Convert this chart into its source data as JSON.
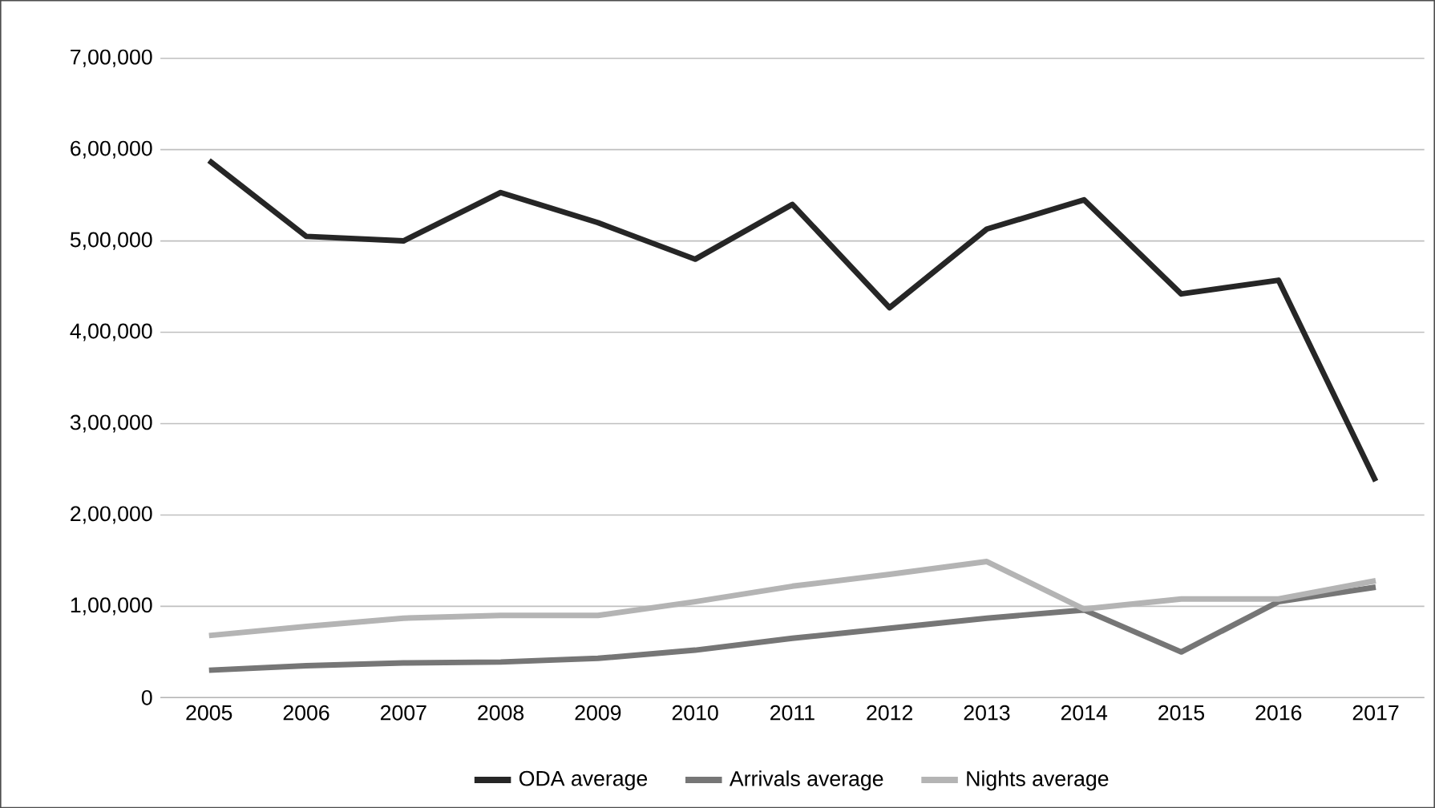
{
  "chart_data": {
    "type": "line",
    "categories": [
      "2005",
      "2006",
      "2007",
      "2008",
      "2009",
      "2010",
      "2011",
      "2012",
      "2013",
      "2014",
      "2015",
      "2016",
      "2017"
    ],
    "series": [
      {
        "name": "ODA average",
        "color": "#262626",
        "values": [
          588000,
          505000,
          500000,
          553000,
          520000,
          480000,
          540000,
          427000,
          513000,
          545000,
          442000,
          457000,
          237000
        ]
      },
      {
        "name": "Arrivals average",
        "color": "#767676",
        "values": [
          30000,
          35000,
          38000,
          39000,
          43000,
          52000,
          65000,
          76000,
          87000,
          96000,
          50000,
          105000,
          121000
        ]
      },
      {
        "name": "Nights average",
        "color": "#b4b4b4",
        "values": [
          68000,
          78000,
          87000,
          90000,
          90000,
          105000,
          122000,
          135000,
          149000,
          97000,
          108000,
          108000,
          128000
        ]
      }
    ],
    "ylim": [
      0,
      700000
    ],
    "yticks": [
      0,
      {
        "value": 100000,
        "label": "1,00,000"
      },
      {
        "value": 200000,
        "label": "2,00,000"
      },
      {
        "value": 300000,
        "label": "3,00,000"
      },
      {
        "value": 400000,
        "label": "4,00,000"
      },
      {
        "value": 500000,
        "label": "5,00,000"
      },
      {
        "value": 600000,
        "label": "6,00,000"
      },
      {
        "value": 700000,
        "label": "7,00,000"
      }
    ],
    "grid": "y",
    "legend": "bottom",
    "marker": "none",
    "line_style": "solid"
  }
}
